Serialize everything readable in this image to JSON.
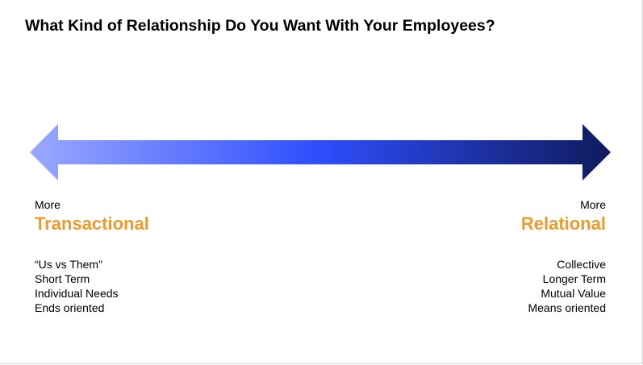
{
  "title": "What Kind of Relationship Do You Want With Your Employees?",
  "colors": {
    "accent": "#ee9a2a",
    "arrow_light": "#9aa8ff",
    "arrow_mid": "#2e4dfc",
    "arrow_dark": "#0f1a5c"
  },
  "left": {
    "more": "More",
    "heading": "Transactional",
    "items": [
      "“Us vs Them”",
      "Short Term",
      "Individual Needs",
      "Ends oriented"
    ]
  },
  "right": {
    "more": "More",
    "heading": "Relational",
    "items": [
      "Collective",
      "Longer Term",
      "Mutual Value",
      "Means oriented"
    ]
  }
}
